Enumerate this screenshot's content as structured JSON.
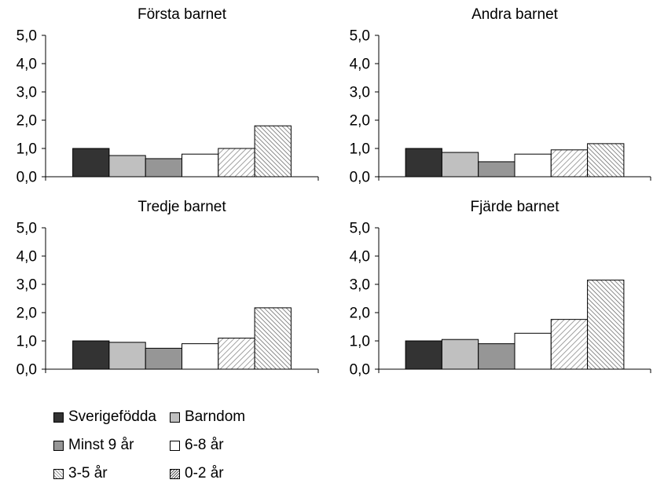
{
  "chart_data": [
    {
      "type": "bar",
      "title": "Första barnet",
      "categories": [
        "Sverigefödda",
        "Barndom",
        "Minst 9 år",
        "6-8 år",
        "3-5 år",
        "0-2 år"
      ],
      "values": [
        1.0,
        0.75,
        0.64,
        0.8,
        1.0,
        1.8
      ],
      "ylim": [
        0,
        5
      ],
      "yticks": [
        "0,0",
        "1,0",
        "2,0",
        "3,0",
        "4,0",
        "5,0"
      ],
      "grid": false
    },
    {
      "type": "bar",
      "title": "Andra barnet",
      "categories": [
        "Sverigefödda",
        "Barndom",
        "Minst 9 år",
        "6-8 år",
        "3-5 år",
        "0-2 år"
      ],
      "values": [
        1.0,
        0.86,
        0.53,
        0.8,
        0.95,
        1.17
      ],
      "ylim": [
        0,
        5
      ],
      "yticks": [
        "0,0",
        "1,0",
        "2,0",
        "3,0",
        "4,0",
        "5,0"
      ],
      "grid": false
    },
    {
      "type": "bar",
      "title": "Tredje barnet",
      "categories": [
        "Sverigefödda",
        "Barndom",
        "Minst 9 år",
        "6-8 år",
        "3-5 år",
        "0-2 år"
      ],
      "values": [
        1.0,
        0.95,
        0.74,
        0.9,
        1.1,
        2.17
      ],
      "ylim": [
        0,
        5
      ],
      "yticks": [
        "0,0",
        "1,0",
        "2,0",
        "3,0",
        "4,0",
        "5,0"
      ],
      "grid": false
    },
    {
      "type": "bar",
      "title": "Fjärde barnet",
      "categories": [
        "Sverigefödda",
        "Barndom",
        "Minst 9 år",
        "6-8 år",
        "3-5 år",
        "0-2 år"
      ],
      "values": [
        1.0,
        1.05,
        0.9,
        1.27,
        1.76,
        3.15
      ],
      "ylim": [
        0,
        5
      ],
      "yticks": [
        "0,0",
        "1,0",
        "2,0",
        "3,0",
        "4,0",
        "5,0"
      ],
      "grid": false
    }
  ],
  "legend": {
    "placement": "bottom-left",
    "items": [
      {
        "label": "Sverigefödda",
        "fill": "#333333",
        "pattern": "solid"
      },
      {
        "label": "Barndom",
        "fill": "#c0c0c0",
        "pattern": "solid"
      },
      {
        "label": "Minst 9 år",
        "fill": "#969696",
        "pattern": "solid"
      },
      {
        "label": "6-8 år",
        "fill": "#ffffff",
        "pattern": "solid"
      },
      {
        "label": "3-5 år",
        "fill": "#ffffff",
        "pattern": "light-diagonal"
      },
      {
        "label": "0-2 år",
        "fill": "#ffffff",
        "pattern": "dense-diagonal"
      }
    ]
  }
}
